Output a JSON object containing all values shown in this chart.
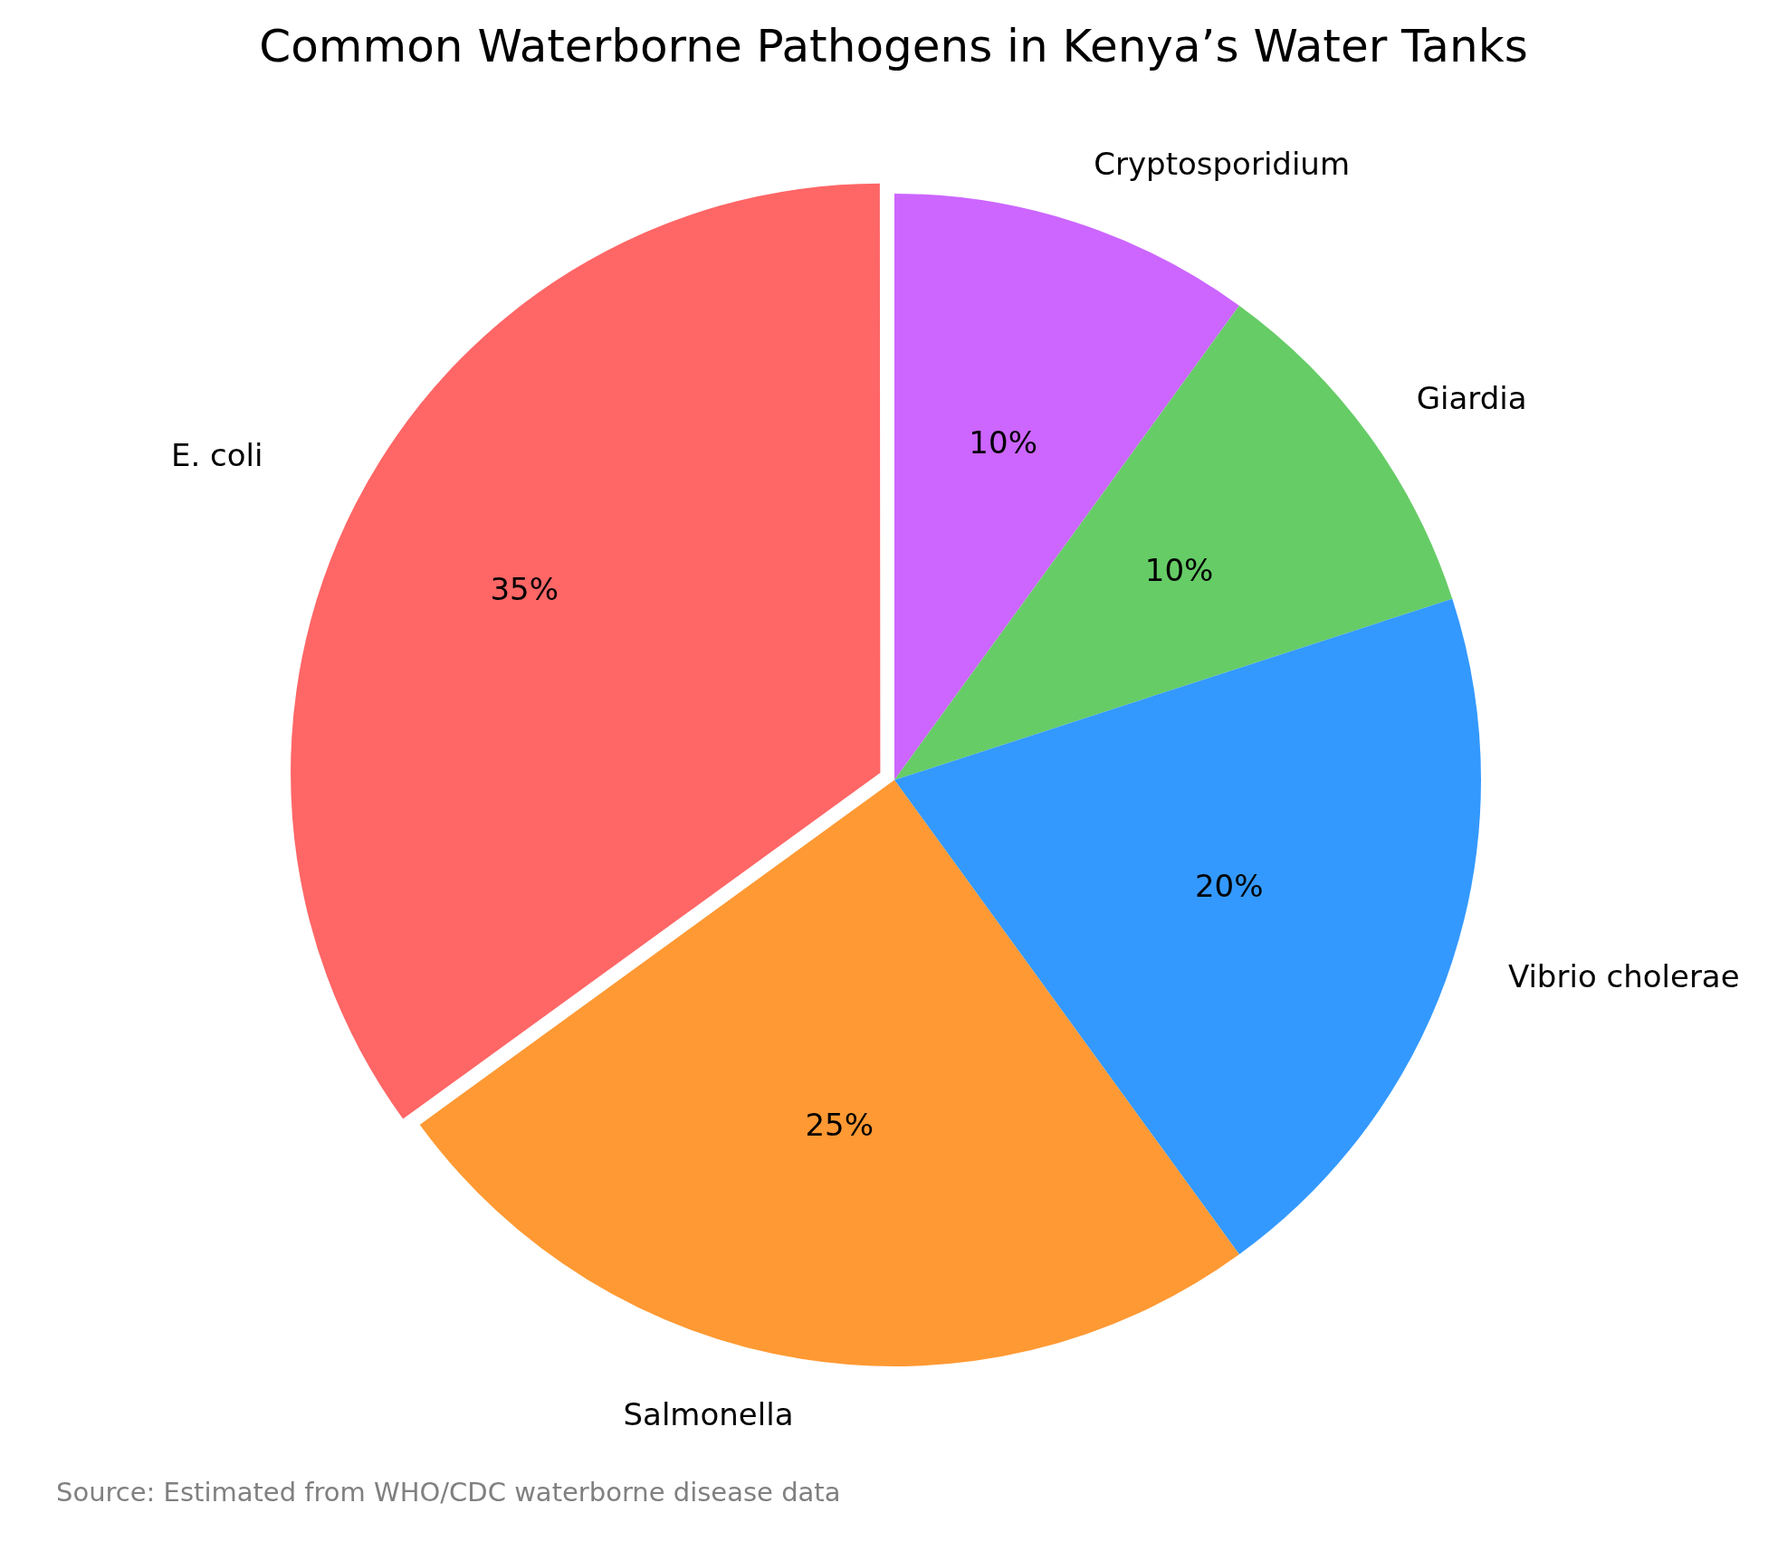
{
  "chart_data": {
    "type": "pie",
    "title": "Common Waterborne Pathogens in Kenya’s Water Tanks",
    "categories": [
      "E. coli",
      "Salmonella",
      "Vibrio cholerae",
      "Giardia",
      "Cryptosporidium"
    ],
    "values": [
      35,
      25,
      20,
      10,
      10
    ],
    "colors": [
      "#ff6666",
      "#ff9933",
      "#3399ff",
      "#66cc66",
      "#cc66ff"
    ],
    "value_labels": [
      "35%",
      "25%",
      "20%",
      "10%",
      "10%"
    ],
    "annotations": [
      "Source: Estimated from WHO/CDC waterborne disease data"
    ]
  }
}
